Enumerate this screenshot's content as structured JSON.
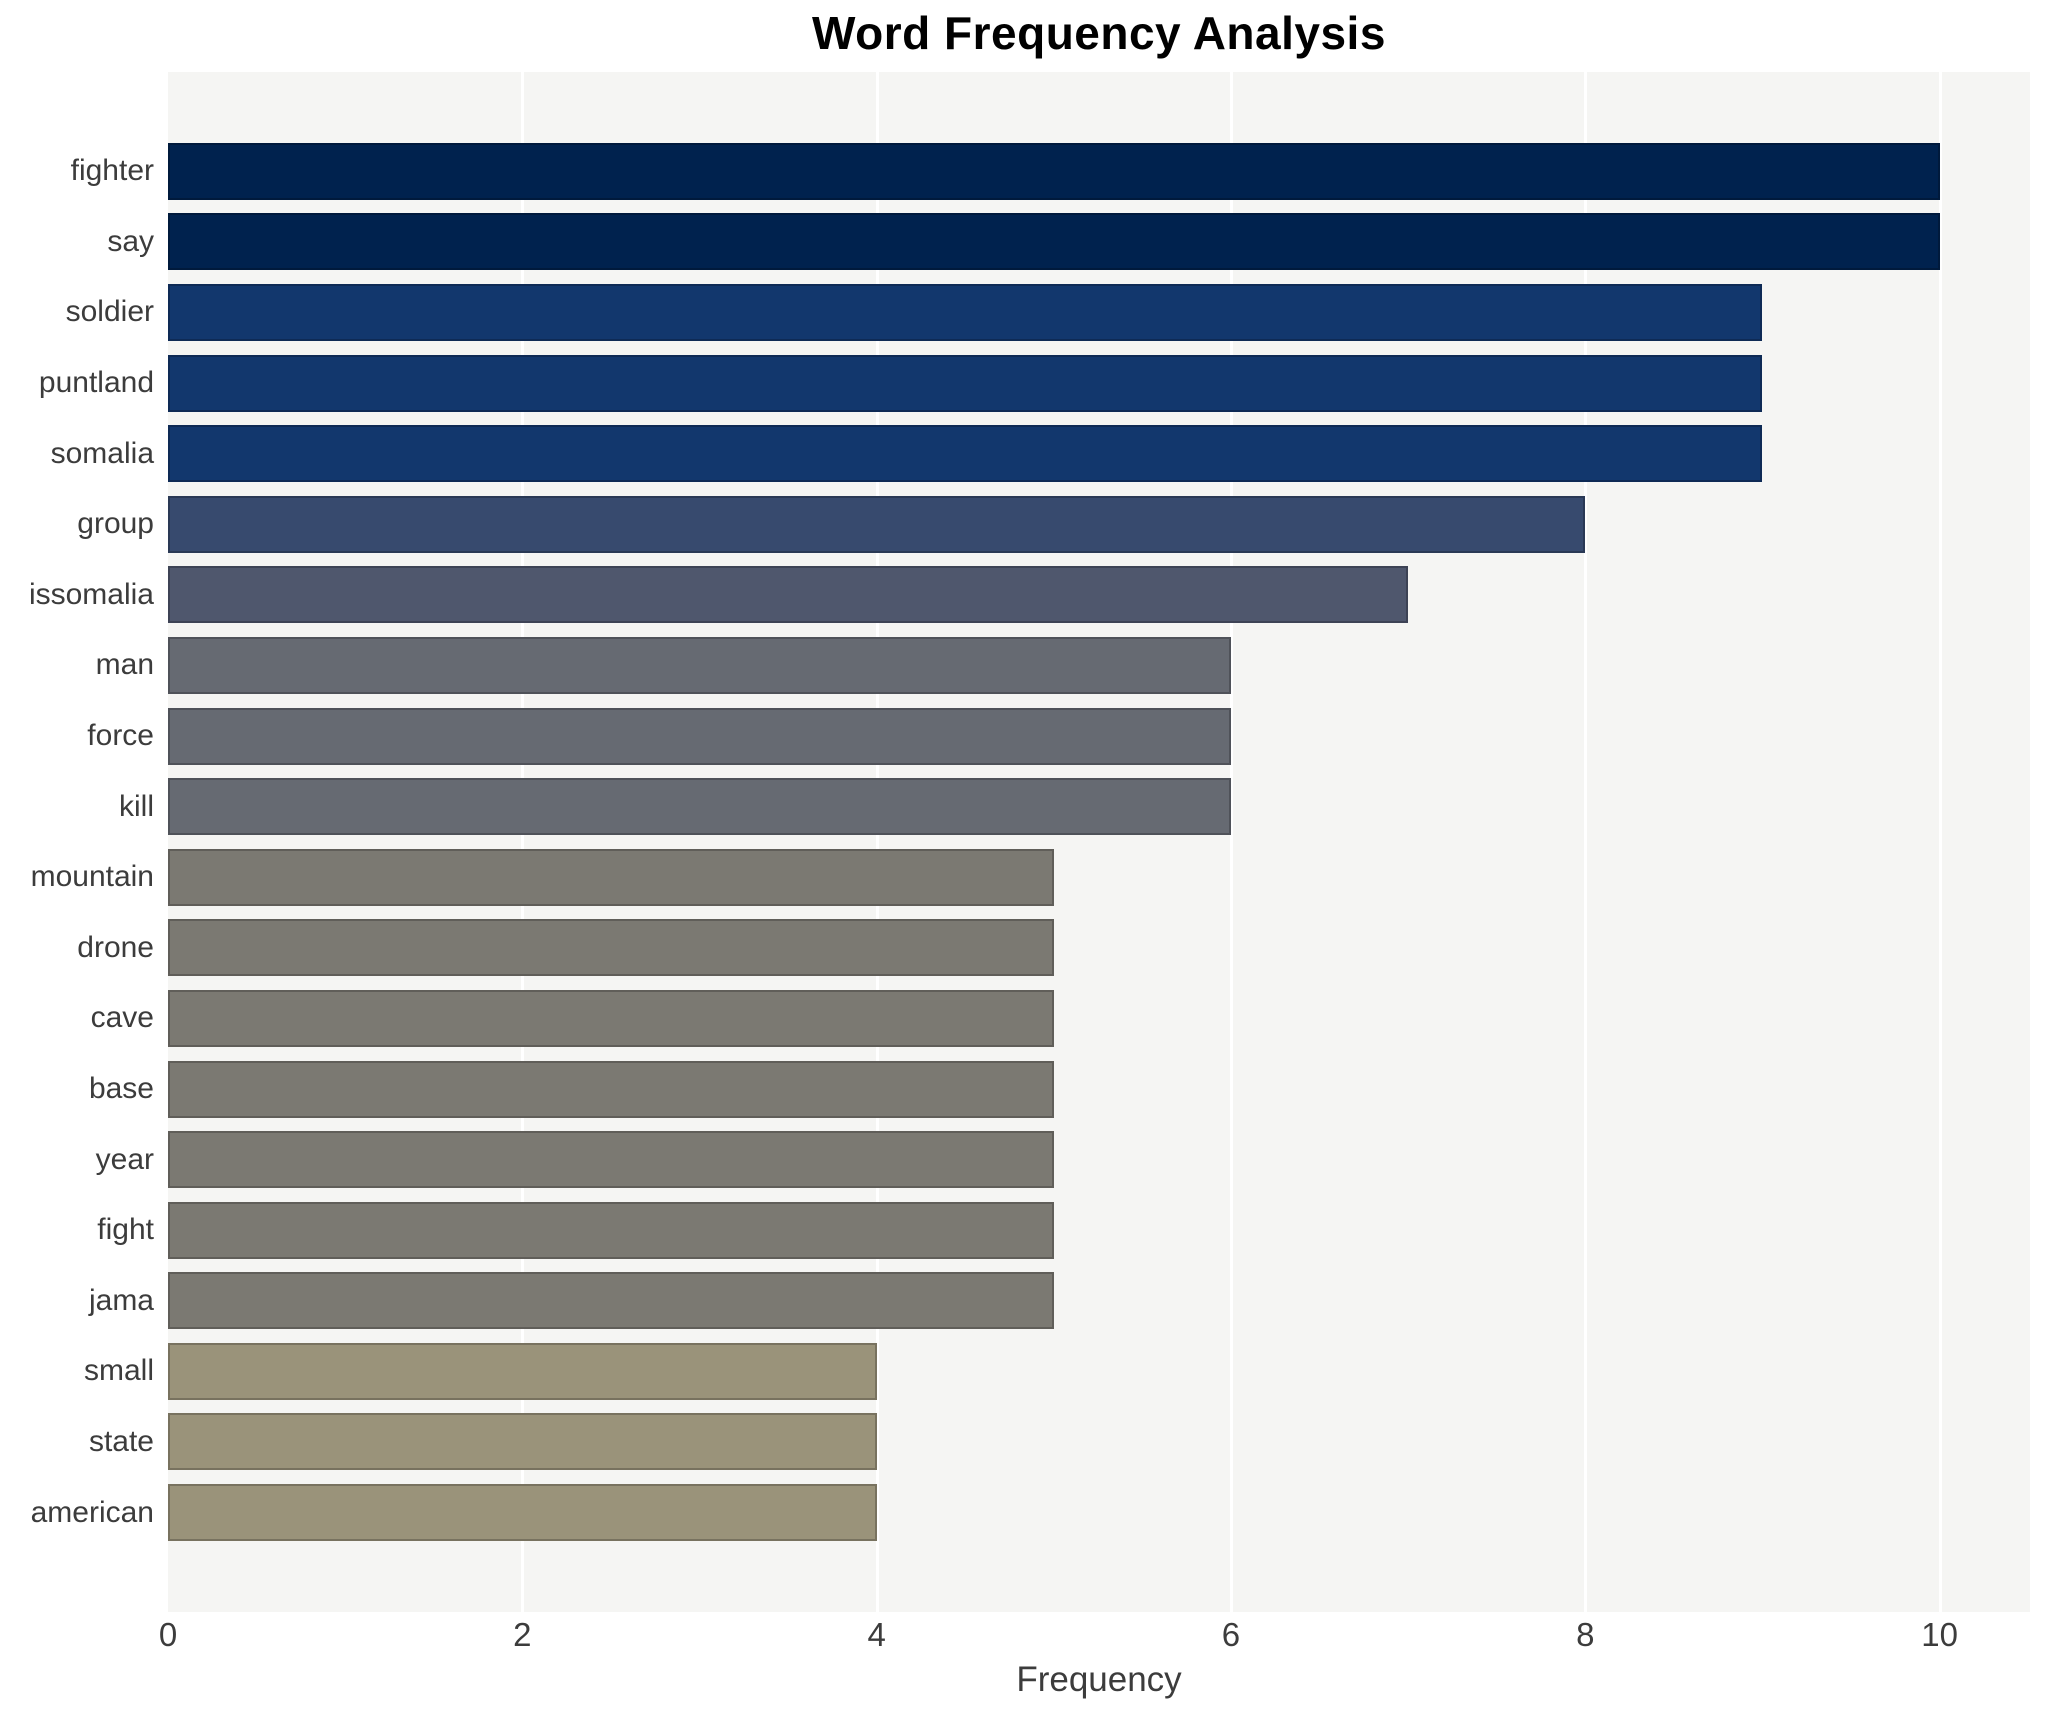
{
  "title": "Word Frequency Analysis",
  "x_axis": {
    "label": "Frequency",
    "ticks": [
      0,
      2,
      4,
      6,
      8,
      10
    ],
    "max_units": 10.51
  },
  "plot": {
    "background_color": "#f5f5f3",
    "gridline_color": "#ffffff",
    "page_background": "#ffffff",
    "title_color": "#000000",
    "tick_text_color": "#3c3c3c"
  },
  "color_scale_by_value": {
    "10": "#00224e",
    "9": "#12376d",
    "8": "#374a6e",
    "7": "#4f576d",
    "6": "#666a72",
    "5": "#7b7972",
    "4": "#9a937a"
  },
  "chart_data": {
    "type": "bar",
    "orientation": "horizontal",
    "title": "Word Frequency Analysis",
    "xlabel": "Frequency",
    "ylabel": "",
    "xlim": [
      0,
      10.51
    ],
    "xticks": [
      0,
      2,
      4,
      6,
      8,
      10
    ],
    "grid": "vertical white major gridlines every 2 units on light-gray plot area",
    "legend": "none",
    "categories": [
      "fighter",
      "say",
      "soldier",
      "puntland",
      "somalia",
      "group",
      "issomalia",
      "man",
      "force",
      "kill",
      "mountain",
      "drone",
      "cave",
      "base",
      "year",
      "fight",
      "jama",
      "small",
      "state",
      "american"
    ],
    "values": [
      10,
      10,
      9,
      9,
      9,
      8,
      7,
      6,
      6,
      6,
      5,
      5,
      5,
      5,
      5,
      5,
      5,
      4,
      4,
      4
    ],
    "bar_colors": [
      "#00224e",
      "#00224e",
      "#12376d",
      "#12376d",
      "#12376d",
      "#374a6e",
      "#4f576d",
      "#666a72",
      "#666a72",
      "#666a72",
      "#7b7972",
      "#7b7972",
      "#7b7972",
      "#7b7972",
      "#7b7972",
      "#7b7972",
      "#7b7972",
      "#9a937a",
      "#9a937a",
      "#9a937a"
    ]
  }
}
